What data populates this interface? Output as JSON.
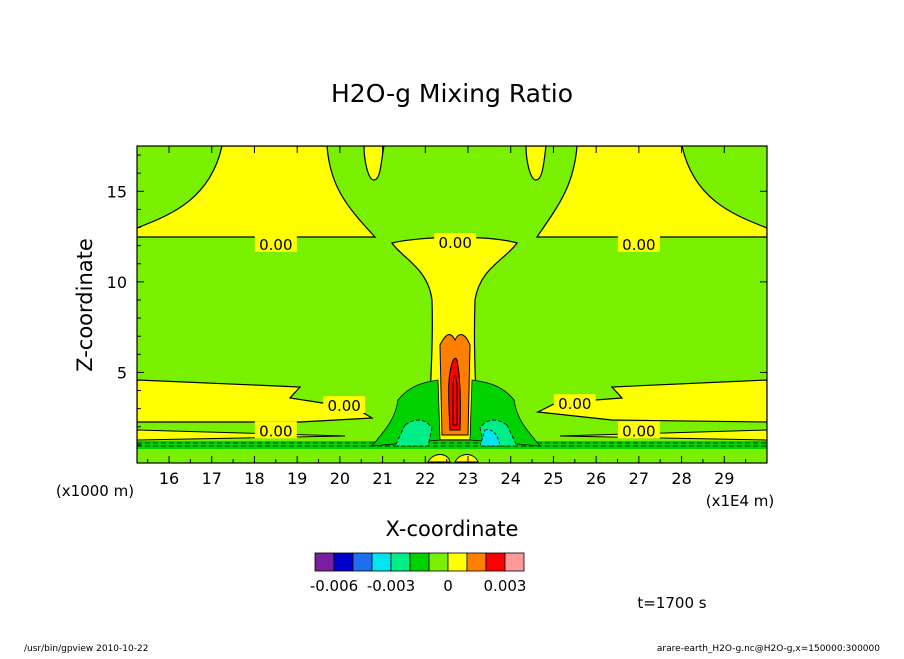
{
  "chart_data": {
    "type": "contour",
    "title": "H2O-g Mixing Ratio",
    "xlabel": "X-coordinate",
    "ylabel": "Z-coordinate",
    "x_unit_note": "(x1E4 m)",
    "y_unit_note": "(x1000 m)",
    "xlim": [
      15.25,
      30.0
    ],
    "ylim": [
      0.0,
      17.5
    ],
    "x_ticks": [
      16,
      17,
      18,
      19,
      20,
      21,
      22,
      23,
      24,
      25,
      26,
      27,
      28,
      29
    ],
    "y_ticks": [
      5,
      10,
      15
    ],
    "contour_labels": [
      {
        "text": "0.00",
        "x": 18.5,
        "z": 12.1
      },
      {
        "text": "0.00",
        "x": 22.7,
        "z": 12.2
      },
      {
        "text": "0.00",
        "x": 27.0,
        "z": 12.1
      },
      {
        "text": "0.00",
        "x": 20.1,
        "z": 3.2
      },
      {
        "text": "0.00",
        "x": 25.5,
        "z": 3.3
      },
      {
        "text": "0.00",
        "x": 18.5,
        "z": 1.8
      },
      {
        "text": "0.00",
        "x": 27.0,
        "z": 1.8
      }
    ],
    "colorbar": {
      "colors": [
        "#7a1fa2",
        "#0000cd",
        "#1e6ef0",
        "#00e5f0",
        "#00ee88",
        "#00d200",
        "#78f000",
        "#ffff00",
        "#ff8000",
        "#ff0000",
        "#ff9a9a"
      ],
      "tick_values": [
        "-0.006",
        "-0.003",
        "0",
        "0.003"
      ]
    },
    "time_label": "t=1700 s"
  },
  "footer": {
    "left": "/usr/bin/gpview   2010-10-22",
    "right": "arare-earth_H2O-g.nc@H2O-g,x=150000:300000"
  },
  "colors": {
    "background_field": "#78f000",
    "positive_band": "#ffff00",
    "core_high": "#ff8000",
    "core_peak": "#ff0000",
    "negative_mid": "#00d200",
    "negative_low": "#00ee88",
    "negative_lower": "#00e5f0"
  }
}
